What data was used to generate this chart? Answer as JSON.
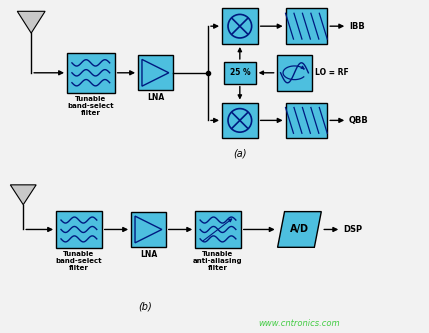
{
  "bg_color": "#f2f2f2",
  "box_color": "#4dbfdf",
  "box_edge": "#000000",
  "text_color": "#000000",
  "watermark_color": "#44cc44",
  "watermark_text": "www.cntronics.com",
  "part_a_label": "(a)",
  "part_b_label": "(b)",
  "IBB_label": "IBB",
  "QBB_label": "QBB",
  "LO_label": "LO = RF",
  "DSP_label": "DSP",
  "pct_label": "25 %",
  "AD_label": "A/D",
  "LNA_label": "LNA",
  "filter_label": "Tunable\nband-select\nfilter",
  "filter2_label": "Tunable\nanti-aliasing\nfilter",
  "LNA2_label": "LNA",
  "ant_color": "#c8c8c8",
  "ant_edge": "#000000"
}
